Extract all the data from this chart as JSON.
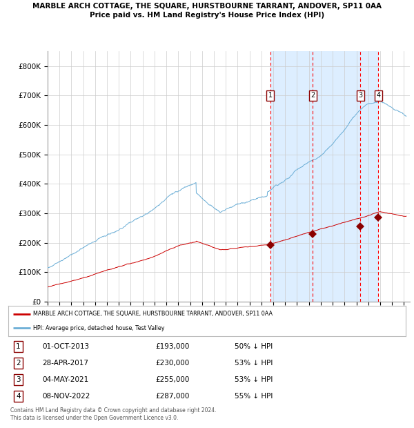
{
  "title": "MARBLE ARCH COTTAGE, THE SQUARE, HURSTBOURNE TARRANT, ANDOVER, SP11 0AA",
  "subtitle": "Price paid vs. HM Land Registry's House Price Index (HPI)",
  "xlim_start": 1995.0,
  "xlim_end": 2025.5,
  "ylim": [
    0,
    850000
  ],
  "yticks": [
    0,
    100000,
    200000,
    300000,
    400000,
    500000,
    600000,
    700000,
    800000
  ],
  "ytick_labels": [
    "£0",
    "£100K",
    "£200K",
    "£300K",
    "£400K",
    "£500K",
    "£600K",
    "£700K",
    "£800K"
  ],
  "transaction_dates_num": [
    2013.75,
    2017.33,
    2021.34,
    2022.85
  ],
  "transaction_prices": [
    193000,
    230000,
    255000,
    287000
  ],
  "transaction_labels": [
    "1",
    "2",
    "3",
    "4"
  ],
  "shaded_region": [
    2013.75,
    2022.85
  ],
  "red_dashed_lines": [
    2013.75,
    2017.33,
    2021.34,
    2022.85
  ],
  "hpi_color": "#6baed6",
  "price_color": "#cc0000",
  "marker_color": "#8b0000",
  "background_color": "#ffffff",
  "grid_color": "#cccccc",
  "shade_color": "#ddeeff",
  "legend_items": [
    "MARBLE ARCH COTTAGE, THE SQUARE, HURSTBOURNE TARRANT, ANDOVER, SP11 0AA",
    "HPI: Average price, detached house, Test Valley"
  ],
  "table_rows": [
    [
      "1",
      "01-OCT-2013",
      "£193,000",
      "50% ↓ HPI"
    ],
    [
      "2",
      "28-APR-2017",
      "£230,000",
      "53% ↓ HPI"
    ],
    [
      "3",
      "04-MAY-2021",
      "£255,000",
      "53% ↓ HPI"
    ],
    [
      "4",
      "08-NOV-2022",
      "£287,000",
      "55% ↓ HPI"
    ]
  ],
  "footnote": "Contains HM Land Registry data © Crown copyright and database right 2024.\nThis data is licensed under the Open Government Licence v3.0."
}
